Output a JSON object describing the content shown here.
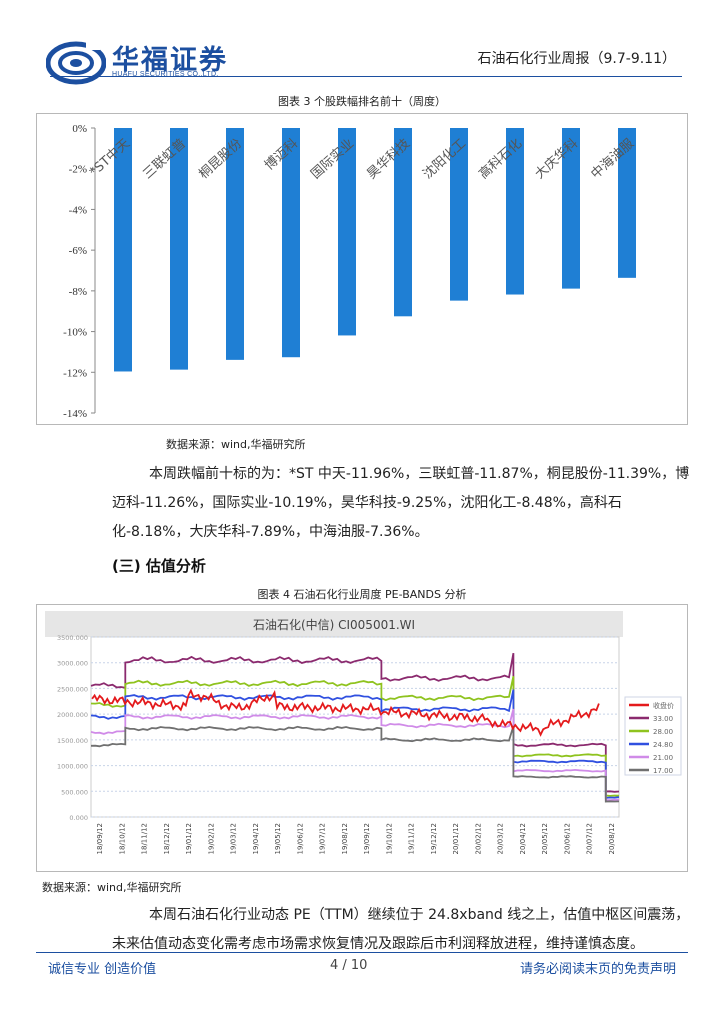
{
  "header": {
    "company_cn": "华福证券",
    "company_en": "HUAFU SECURITIES CO.,LTD.",
    "report_title": "石油石化行业周报（9.7-9.11）"
  },
  "figure3": {
    "caption": "图表 3 个股跌幅排名前十（周度）",
    "source": "数据来源：wind,华福研究所",
    "chart_data": {
      "type": "bar",
      "categories": [
        "*ST中天",
        "三联虹普",
        "桐昆股份",
        "博迈科",
        "国际实业",
        "昊华科技",
        "沈阳化工",
        "高科石化",
        "大庆华科",
        "中海油服"
      ],
      "values": [
        -11.96,
        -11.87,
        -11.39,
        -11.26,
        -10.19,
        -9.25,
        -8.48,
        -8.18,
        -7.89,
        -7.36
      ],
      "ylim": [
        -14,
        0
      ],
      "yticks": [
        "0%",
        "-2%",
        "-4%",
        "-6%",
        "-8%",
        "-10%",
        "-12%",
        "-14%"
      ],
      "color": "#1f7fd4"
    }
  },
  "para1": "本周跌幅前十标的为：*ST 中天-11.96%，三联虹普-11.87%，桐昆股份-11.39%，博迈科-11.26%，国际实业-10.19%，昊华科技-9.25%，沈阳化工-8.48%，高科石化-8.18%，大庆华科-7.89%，中海油服-7.36%。",
  "section": "(三) 估值分析",
  "figure4": {
    "caption": "图表 4 石油石化行业周度 PE-BANDS 分析",
    "source": "数据来源：wind,华福研究所",
    "chart_data": {
      "type": "line",
      "title": "石油石化(中信) CI005001.WI",
      "yticks": [
        "3500.000",
        "3000.000",
        "2500.000",
        "2000.000",
        "1500.000",
        "1000.000",
        "500.000",
        "0.000"
      ],
      "ylim": [
        0,
        3500
      ],
      "xticks": [
        "18/09/12",
        "18/10/12",
        "18/11/12",
        "18/12/12",
        "19/01/12",
        "19/02/12",
        "19/03/12",
        "19/04/12",
        "19/05/12",
        "19/06/12",
        "19/07/12",
        "19/08/12",
        "19/09/12",
        "19/10/12",
        "19/11/12",
        "19/12/12",
        "20/01/12",
        "20/02/12",
        "20/03/12",
        "20/04/12",
        "20/05/12",
        "20/06/12",
        "20/07/12",
        "20/08/12"
      ],
      "legend": [
        "收盘价",
        "33.00",
        "28.00",
        "24.80",
        "21.00",
        "17.00"
      ],
      "colors": [
        "#e41a1c",
        "#8b2a6e",
        "#8fc31f",
        "#3050e0",
        "#d08be8",
        "#707070"
      ]
    }
  },
  "para2": "本周石油石化行业动态 PE（TTM）继续位于 24.8xband 线之上，估值中枢区间震荡，未来估值动态变化需考虑市场需求恢复情况及跟踪后市利润释放进程，维持谨慎态度。",
  "footer": {
    "left": "诚信专业  创造价值",
    "page": "4 / 10",
    "right": "请务必阅读末页的免责声明"
  }
}
